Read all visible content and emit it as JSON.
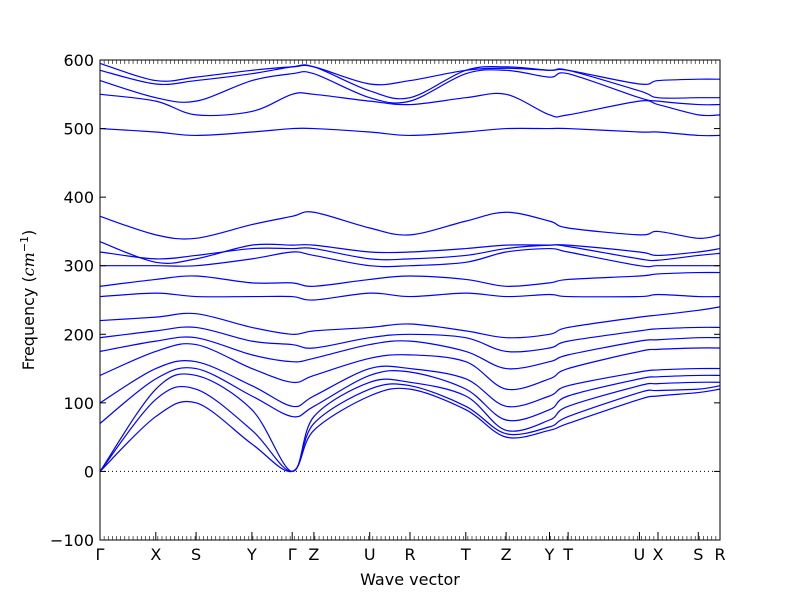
{
  "chart_data": {
    "type": "line",
    "title": "",
    "xlabel": "Wave vector",
    "ylabel": "Frequency (cm⁻¹)",
    "ylabel_parts": {
      "prefix": "Frequency (",
      "unit": "cm",
      "exponent": "−1",
      "suffix": ")"
    },
    "ylim": [
      -100,
      600
    ],
    "yticks": [
      -100,
      0,
      100,
      200,
      300,
      400,
      500,
      600
    ],
    "xlim": [
      0,
      1
    ],
    "grid": false,
    "legend": "none",
    "zero_line": {
      "y": 0,
      "style": "dotted"
    },
    "line_color": "#0000ff",
    "high_symmetry_points": [
      {
        "label": "Γ",
        "x": 0.0
      },
      {
        "label": "X",
        "x": 0.09
      },
      {
        "label": "S",
        "x": 0.155
      },
      {
        "label": "Y",
        "x": 0.245
      },
      {
        "label": "Γ",
        "x": 0.31
      },
      {
        "label": "Z",
        "x": 0.345
      },
      {
        "label": "U",
        "x": 0.435
      },
      {
        "label": "R",
        "x": 0.5
      },
      {
        "label": "T",
        "x": 0.59
      },
      {
        "label": "Z",
        "x": 0.655
      },
      {
        "label": "Y",
        "x": 0.725
      },
      {
        "label": "T",
        "x": 0.755
      },
      {
        "label": "U",
        "x": 0.87
      },
      {
        "label": "X",
        "x": 0.9
      },
      {
        "label": "S",
        "x": 0.965
      },
      {
        "label": "R",
        "x": 1.0
      }
    ],
    "series": [
      {
        "x": [
          0.0,
          0.09,
          0.155,
          0.245,
          0.31,
          0.345,
          0.435,
          0.5,
          0.59,
          0.655,
          0.725,
          0.755,
          0.87,
          0.9,
          0.965,
          1.0
        ],
        "values": [
          0,
          80,
          100,
          40,
          0,
          60,
          110,
          120,
          90,
          50,
          60,
          70,
          105,
          110,
          115,
          120
        ]
      },
      {
        "x": [
          0.0,
          0.09,
          0.155,
          0.245,
          0.31,
          0.345,
          0.435,
          0.5,
          0.59,
          0.655,
          0.725,
          0.755,
          0.87,
          0.9,
          0.965,
          1.0
        ],
        "values": [
          0,
          105,
          120,
          60,
          0,
          70,
          120,
          125,
          95,
          55,
          65,
          80,
          115,
          118,
          120,
          125
        ]
      },
      {
        "x": [
          0.0,
          0.09,
          0.155,
          0.245,
          0.31,
          0.345,
          0.435,
          0.5,
          0.59,
          0.655,
          0.725,
          0.755,
          0.87,
          0.9,
          0.965,
          1.0
        ],
        "values": [
          0,
          120,
          140,
          90,
          0,
          80,
          130,
          130,
          110,
          60,
          75,
          95,
          125,
          128,
          130,
          130
        ]
      },
      {
        "x": [
          0.0,
          0.09,
          0.155,
          0.245,
          0.31,
          0.345,
          0.435,
          0.5,
          0.59,
          0.655,
          0.725,
          0.755,
          0.87,
          0.9,
          0.965,
          1.0
        ],
        "values": [
          70,
          135,
          150,
          110,
          80,
          95,
          140,
          145,
          120,
          75,
          90,
          110,
          135,
          138,
          140,
          140
        ]
      },
      {
        "x": [
          0.0,
          0.09,
          0.155,
          0.245,
          0.31,
          0.345,
          0.435,
          0.5,
          0.59,
          0.655,
          0.725,
          0.755,
          0.87,
          0.9,
          0.965,
          1.0
        ],
        "values": [
          100,
          150,
          160,
          125,
          95,
          110,
          150,
          150,
          135,
          95,
          110,
          125,
          145,
          148,
          150,
          150
        ]
      },
      {
        "x": [
          0.0,
          0.09,
          0.155,
          0.245,
          0.31,
          0.345,
          0.435,
          0.5,
          0.59,
          0.655,
          0.725,
          0.755,
          0.87,
          0.9,
          0.965,
          1.0
        ],
        "values": [
          140,
          175,
          185,
          150,
          130,
          140,
          165,
          170,
          160,
          120,
          135,
          150,
          175,
          178,
          180,
          180
        ]
      },
      {
        "x": [
          0.0,
          0.09,
          0.155,
          0.245,
          0.31,
          0.345,
          0.435,
          0.5,
          0.59,
          0.655,
          0.725,
          0.755,
          0.87,
          0.9,
          0.965,
          1.0
        ],
        "values": [
          175,
          190,
          195,
          170,
          160,
          165,
          185,
          190,
          175,
          150,
          160,
          170,
          190,
          192,
          195,
          195
        ]
      },
      {
        "x": [
          0.0,
          0.09,
          0.155,
          0.245,
          0.31,
          0.345,
          0.435,
          0.5,
          0.59,
          0.655,
          0.725,
          0.755,
          0.87,
          0.9,
          0.965,
          1.0
        ],
        "values": [
          195,
          205,
          210,
          190,
          185,
          180,
          195,
          200,
          195,
          175,
          180,
          190,
          205,
          208,
          210,
          210
        ]
      },
      {
        "x": [
          0.0,
          0.09,
          0.155,
          0.245,
          0.31,
          0.345,
          0.435,
          0.5,
          0.59,
          0.655,
          0.725,
          0.755,
          0.87,
          0.9,
          0.965,
          1.0
        ],
        "values": [
          220,
          225,
          230,
          210,
          200,
          205,
          210,
          215,
          205,
          195,
          200,
          210,
          225,
          228,
          235,
          240
        ]
      },
      {
        "x": [
          0.0,
          0.09,
          0.155,
          0.245,
          0.31,
          0.345,
          0.435,
          0.5,
          0.59,
          0.655,
          0.725,
          0.755,
          0.87,
          0.9,
          0.965,
          1.0
        ],
        "values": [
          255,
          260,
          255,
          255,
          255,
          250,
          260,
          255,
          260,
          255,
          258,
          255,
          255,
          258,
          255,
          255
        ]
      },
      {
        "x": [
          0.0,
          0.09,
          0.155,
          0.245,
          0.31,
          0.345,
          0.435,
          0.5,
          0.59,
          0.655,
          0.725,
          0.755,
          0.87,
          0.9,
          0.965,
          1.0
        ],
        "values": [
          270,
          280,
          285,
          275,
          275,
          270,
          280,
          285,
          280,
          270,
          275,
          280,
          285,
          288,
          290,
          290
        ]
      },
      {
        "x": [
          0.0,
          0.09,
          0.155,
          0.245,
          0.31,
          0.345,
          0.435,
          0.5,
          0.59,
          0.655,
          0.725,
          0.755,
          0.87,
          0.9,
          0.965,
          1.0
        ],
        "values": [
          300,
          300,
          300,
          310,
          320,
          315,
          300,
          300,
          305,
          320,
          325,
          320,
          300,
          300,
          300,
          300
        ]
      },
      {
        "x": [
          0.0,
          0.09,
          0.155,
          0.245,
          0.31,
          0.345,
          0.435,
          0.5,
          0.59,
          0.655,
          0.725,
          0.755,
          0.87,
          0.9,
          0.965,
          1.0
        ],
        "values": [
          320,
          310,
          315,
          325,
          325,
          325,
          310,
          310,
          315,
          325,
          330,
          328,
          310,
          308,
          315,
          318
        ]
      },
      {
        "x": [
          0.0,
          0.09,
          0.155,
          0.245,
          0.31,
          0.345,
          0.435,
          0.5,
          0.59,
          0.655,
          0.725,
          0.755,
          0.87,
          0.9,
          0.965,
          1.0
        ],
        "values": [
          335,
          305,
          310,
          330,
          330,
          330,
          320,
          320,
          325,
          330,
          330,
          330,
          320,
          315,
          320,
          325
        ]
      },
      {
        "x": [
          0.0,
          0.09,
          0.155,
          0.245,
          0.31,
          0.345,
          0.435,
          0.5,
          0.59,
          0.655,
          0.725,
          0.755,
          0.87,
          0.9,
          0.965,
          1.0
        ],
        "values": [
          372,
          345,
          340,
          360,
          372,
          378,
          355,
          345,
          365,
          378,
          365,
          355,
          345,
          350,
          340,
          345
        ]
      },
      {
        "x": [
          0.0,
          0.09,
          0.155,
          0.245,
          0.31,
          0.345,
          0.435,
          0.5,
          0.59,
          0.655,
          0.725,
          0.755,
          0.87,
          0.9,
          0.965,
          1.0
        ],
        "values": [
          500,
          495,
          490,
          495,
          500,
          500,
          495,
          490,
          495,
          500,
          500,
          500,
          495,
          495,
          490,
          490
        ]
      },
      {
        "x": [
          0.0,
          0.09,
          0.155,
          0.245,
          0.31,
          0.345,
          0.435,
          0.5,
          0.59,
          0.655,
          0.725,
          0.755,
          0.87,
          0.9,
          0.965,
          1.0
        ],
        "values": [
          550,
          540,
          520,
          525,
          550,
          550,
          540,
          535,
          545,
          550,
          520,
          520,
          540,
          535,
          520,
          520
        ]
      },
      {
        "x": [
          0.0,
          0.09,
          0.155,
          0.245,
          0.31,
          0.345,
          0.435,
          0.5,
          0.59,
          0.655,
          0.725,
          0.755,
          0.87,
          0.9,
          0.965,
          1.0
        ],
        "values": [
          570,
          545,
          540,
          570,
          580,
          580,
          545,
          540,
          580,
          585,
          575,
          580,
          545,
          540,
          535,
          535
        ]
      },
      {
        "x": [
          0.0,
          0.09,
          0.155,
          0.245,
          0.31,
          0.345,
          0.435,
          0.5,
          0.59,
          0.655,
          0.725,
          0.755,
          0.87,
          0.9,
          0.965,
          1.0
        ],
        "values": [
          585,
          565,
          570,
          580,
          590,
          590,
          555,
          545,
          585,
          590,
          585,
          585,
          555,
          545,
          545,
          545
        ]
      },
      {
        "x": [
          0.0,
          0.09,
          0.155,
          0.245,
          0.31,
          0.345,
          0.435,
          0.5,
          0.59,
          0.655,
          0.725,
          0.755,
          0.87,
          0.9,
          0.965,
          1.0
        ],
        "values": [
          595,
          570,
          575,
          585,
          590,
          590,
          565,
          570,
          585,
          588,
          585,
          585,
          565,
          570,
          572,
          572
        ]
      }
    ]
  }
}
